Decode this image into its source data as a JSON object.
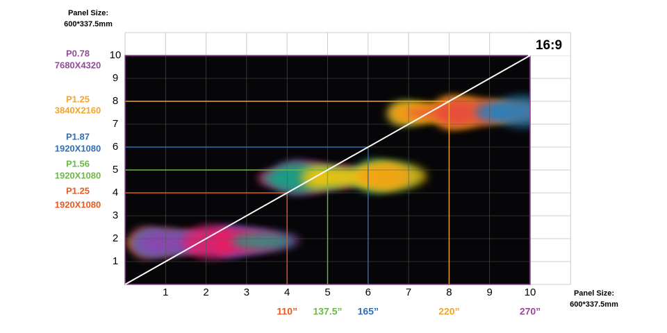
{
  "header": {
    "label": "Panel Size:",
    "size": "600*337.5mm"
  },
  "aspect": "16:9",
  "y_axis": [
    1,
    2,
    3,
    4,
    5,
    6,
    7,
    8,
    9,
    10
  ],
  "x_axis": [
    1,
    2,
    3,
    4,
    5,
    6,
    7,
    8,
    9,
    10
  ],
  "levels": [
    {
      "pitch": "P0.78",
      "resolution": "7680X4320",
      "size": "270”",
      "color": "#94499a"
    },
    {
      "pitch": "P1.25",
      "resolution": "3840X2160",
      "size": "220”",
      "color": "#f2a52b"
    },
    {
      "pitch": "P1.87",
      "resolution": "1920X1080",
      "size": "165”",
      "color": "#2d6fb7"
    },
    {
      "pitch": "P1.56",
      "resolution": "1920X1080",
      "size": "137.5”",
      "color": "#6cb845"
    },
    {
      "pitch": "P1.25",
      "resolution": "1920X1080",
      "size": "110”",
      "color": "#e8581f"
    }
  ],
  "footer": {
    "label": "Panel Size:",
    "size": "600*337.5mm"
  }
}
